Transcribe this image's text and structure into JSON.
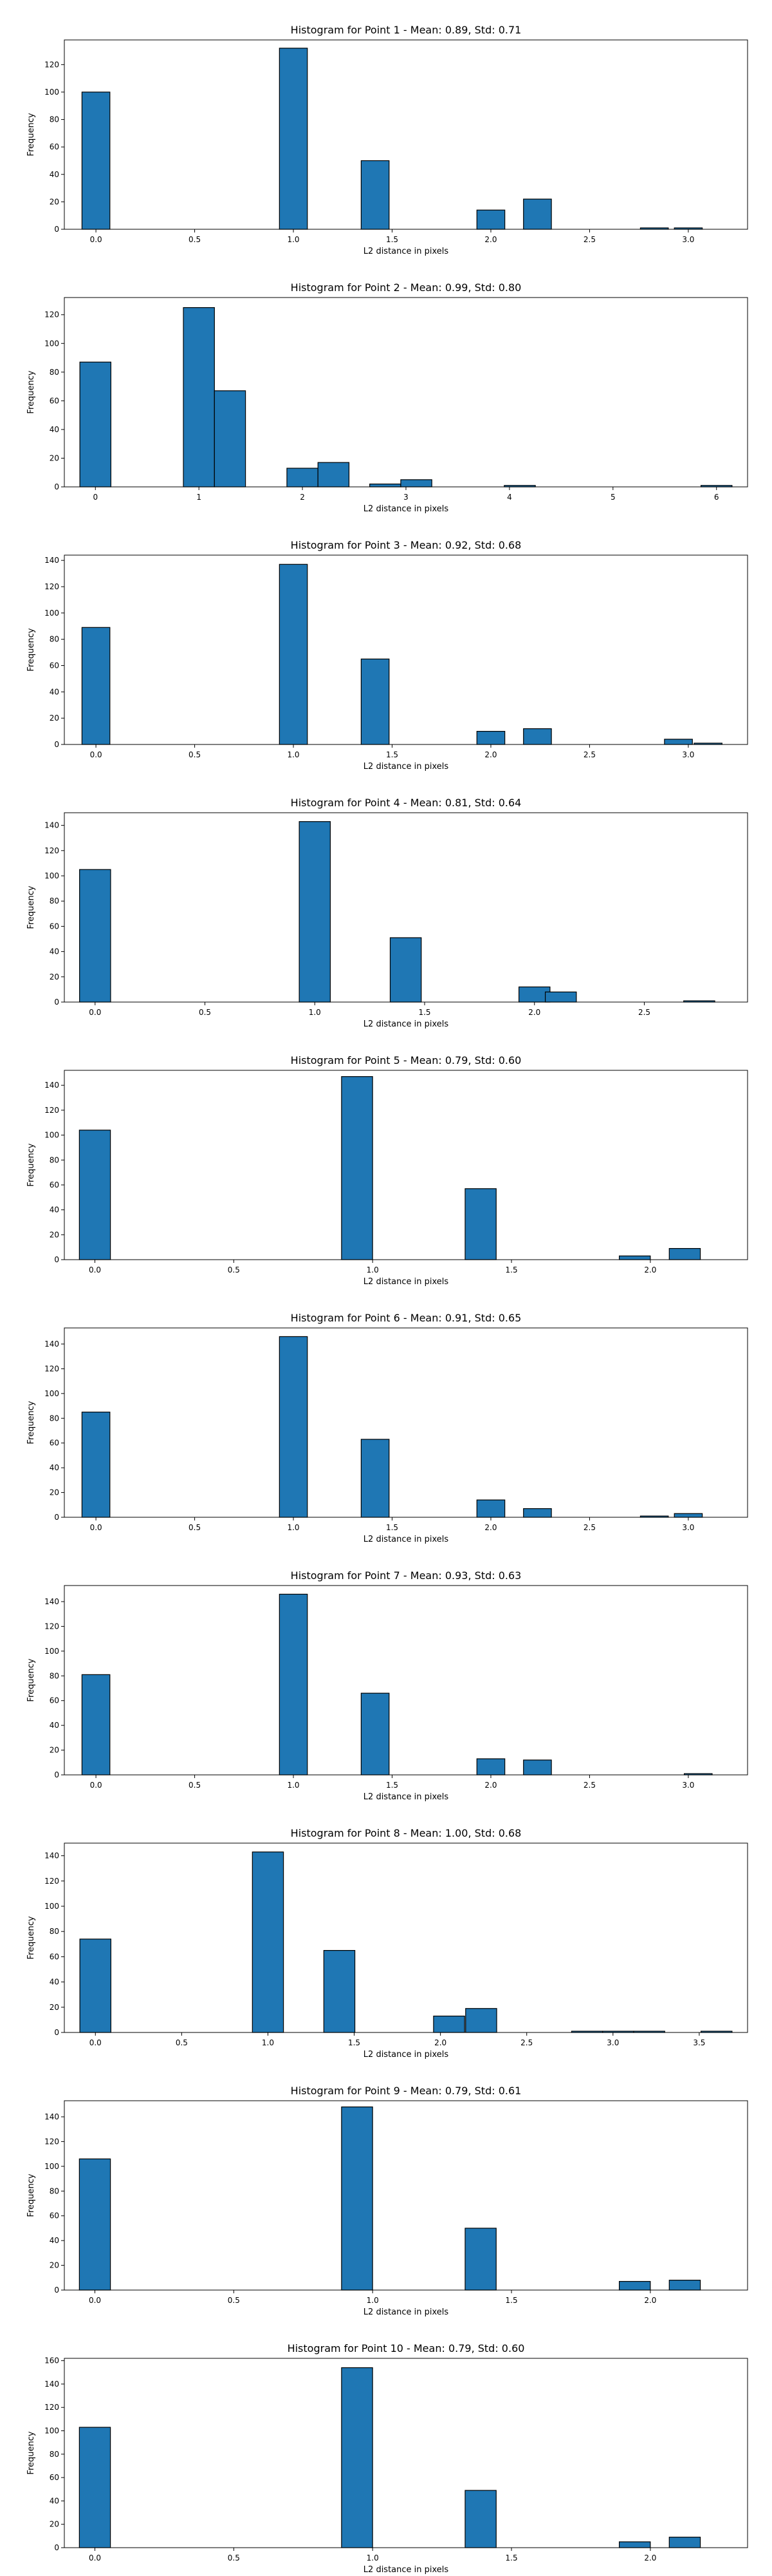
{
  "chart_data": [
    {
      "type": "bar",
      "title": "Histogram for Point 1 - Mean: 0.89, Std: 0.71",
      "xlabel": "L2 distance in pixels",
      "ylabel": "Frequency",
      "xlim": [
        -0.16,
        3.3
      ],
      "ylim": [
        0,
        138
      ],
      "xticks": [
        0.0,
        0.5,
        1.0,
        1.5,
        2.0,
        2.5,
        3.0
      ],
      "xtick_labels": [
        "0.0",
        "0.5",
        "1.0",
        "1.5",
        "2.0",
        "2.5",
        "3.0"
      ],
      "yticks": [
        0,
        20,
        40,
        60,
        80,
        100,
        120
      ],
      "ytick_labels": [
        "0",
        "20",
        "40",
        "60",
        "80",
        "100",
        "120"
      ],
      "bin_width": 0.1414,
      "bins": [
        {
          "x": 0.0,
          "value": 100
        },
        {
          "x": 1.0,
          "value": 132
        },
        {
          "x": 1.414,
          "value": 50
        },
        {
          "x": 2.0,
          "value": 14
        },
        {
          "x": 2.236,
          "value": 22
        },
        {
          "x": 2.828,
          "value": 1
        },
        {
          "x": 3.0,
          "value": 1
        }
      ]
    },
    {
      "type": "bar",
      "title": "Histogram for Point 2 - Mean: 0.99, Std: 0.80",
      "xlabel": "L2 distance in pixels",
      "ylabel": "Frequency",
      "xlim": [
        -0.3,
        6.3
      ],
      "ylim": [
        0,
        132
      ],
      "xticks": [
        0,
        1,
        2,
        3,
        4,
        5,
        6
      ],
      "xtick_labels": [
        "0",
        "1",
        "2",
        "3",
        "4",
        "5",
        "6"
      ],
      "yticks": [
        0,
        20,
        40,
        60,
        80,
        100,
        120
      ],
      "ytick_labels": [
        "0",
        "20",
        "40",
        "60",
        "80",
        "100",
        "120"
      ],
      "bin_width": 0.3,
      "bins": [
        {
          "x": 0.0,
          "value": 87
        },
        {
          "x": 1.0,
          "value": 125
        },
        {
          "x": 1.3,
          "value": 67
        },
        {
          "x": 2.0,
          "value": 13
        },
        {
          "x": 2.3,
          "value": 17
        },
        {
          "x": 2.8,
          "value": 2
        },
        {
          "x": 3.1,
          "value": 5
        },
        {
          "x": 4.1,
          "value": 1
        },
        {
          "x": 6.0,
          "value": 1
        }
      ]
    },
    {
      "type": "bar",
      "title": "Histogram for Point 3 - Mean: 0.92, Std: 0.68",
      "xlabel": "L2 distance in pixels",
      "ylabel": "Frequency",
      "xlim": [
        -0.16,
        3.3
      ],
      "ylim": [
        0,
        144
      ],
      "xticks": [
        0.0,
        0.5,
        1.0,
        1.5,
        2.0,
        2.5,
        3.0
      ],
      "xtick_labels": [
        "0.0",
        "0.5",
        "1.0",
        "1.5",
        "2.0",
        "2.5",
        "3.0"
      ],
      "yticks": [
        0,
        20,
        40,
        60,
        80,
        100,
        120,
        140
      ],
      "ytick_labels": [
        "0",
        "20",
        "40",
        "60",
        "80",
        "100",
        "120",
        "140"
      ],
      "bin_width": 0.1414,
      "bins": [
        {
          "x": 0.0,
          "value": 89
        },
        {
          "x": 1.0,
          "value": 137
        },
        {
          "x": 1.414,
          "value": 65
        },
        {
          "x": 2.0,
          "value": 10
        },
        {
          "x": 2.236,
          "value": 12
        },
        {
          "x": 2.95,
          "value": 4
        },
        {
          "x": 3.1,
          "value": 1
        }
      ]
    },
    {
      "type": "bar",
      "title": "Histogram for Point 4 - Mean: 0.81, Std: 0.64",
      "xlabel": "L2 distance in pixels",
      "ylabel": "Frequency",
      "xlim": [
        -0.14,
        2.97
      ],
      "ylim": [
        0,
        150
      ],
      "xticks": [
        0.0,
        0.5,
        1.0,
        1.5,
        2.0,
        2.5
      ],
      "xtick_labels": [
        "0.0",
        "0.5",
        "1.0",
        "1.5",
        "2.0",
        "2.5"
      ],
      "yticks": [
        0,
        20,
        40,
        60,
        80,
        100,
        120,
        140
      ],
      "ytick_labels": [
        "0",
        "20",
        "40",
        "60",
        "80",
        "100",
        "120",
        "140"
      ],
      "bin_width": 0.1414,
      "bins": [
        {
          "x": 0.0,
          "value": 105
        },
        {
          "x": 1.0,
          "value": 143
        },
        {
          "x": 1.414,
          "value": 51
        },
        {
          "x": 2.0,
          "value": 12
        },
        {
          "x": 2.12,
          "value": 8
        },
        {
          "x": 2.75,
          "value": 1
        }
      ]
    },
    {
      "type": "bar",
      "title": "Histogram for Point 5 - Mean: 0.79, Std: 0.60",
      "xlabel": "L2 distance in pixels",
      "ylabel": "Frequency",
      "xlim": [
        -0.11,
        2.35
      ],
      "ylim": [
        0,
        152
      ],
      "xticks": [
        0.0,
        0.5,
        1.0,
        1.5,
        2.0
      ],
      "xtick_labels": [
        "0.0",
        "0.5",
        "1.0",
        "1.5",
        "2.0"
      ],
      "yticks": [
        0,
        20,
        40,
        60,
        80,
        100,
        120,
        140
      ],
      "ytick_labels": [
        "0",
        "20",
        "40",
        "60",
        "80",
        "100",
        "120",
        "140"
      ],
      "bin_width": 0.1118,
      "bins": [
        {
          "x": 0.0,
          "value": 104
        },
        {
          "x": 0.944,
          "value": 147
        },
        {
          "x": 1.389,
          "value": 57
        },
        {
          "x": 1.944,
          "value": 3
        },
        {
          "x": 2.124,
          "value": 9
        }
      ]
    },
    {
      "type": "bar",
      "title": "Histogram for Point 6 - Mean: 0.91, Std: 0.65",
      "xlabel": "L2 distance in pixels",
      "ylabel": "Frequency",
      "xlim": [
        -0.16,
        3.3
      ],
      "ylim": [
        0,
        153
      ],
      "xticks": [
        0.0,
        0.5,
        1.0,
        1.5,
        2.0,
        2.5,
        3.0
      ],
      "xtick_labels": [
        "0.0",
        "0.5",
        "1.0",
        "1.5",
        "2.0",
        "2.5",
        "3.0"
      ],
      "yticks": [
        0,
        20,
        40,
        60,
        80,
        100,
        120,
        140
      ],
      "ytick_labels": [
        "0",
        "20",
        "40",
        "60",
        "80",
        "100",
        "120",
        "140"
      ],
      "bin_width": 0.1414,
      "bins": [
        {
          "x": 0.0,
          "value": 85
        },
        {
          "x": 1.0,
          "value": 146
        },
        {
          "x": 1.414,
          "value": 63
        },
        {
          "x": 2.0,
          "value": 14
        },
        {
          "x": 2.236,
          "value": 7
        },
        {
          "x": 2.828,
          "value": 1
        },
        {
          "x": 3.0,
          "value": 3
        }
      ]
    },
    {
      "type": "bar",
      "title": "Histogram for Point 7 - Mean: 0.93, Std: 0.63",
      "xlabel": "L2 distance in pixels",
      "ylabel": "Frequency",
      "xlim": [
        -0.16,
        3.3
      ],
      "ylim": [
        0,
        153
      ],
      "xticks": [
        0.0,
        0.5,
        1.0,
        1.5,
        2.0,
        2.5,
        3.0
      ],
      "xtick_labels": [
        "0.0",
        "0.5",
        "1.0",
        "1.5",
        "2.0",
        "2.5",
        "3.0"
      ],
      "yticks": [
        0,
        20,
        40,
        60,
        80,
        100,
        120,
        140
      ],
      "ytick_labels": [
        "0",
        "20",
        "40",
        "60",
        "80",
        "100",
        "120",
        "140"
      ],
      "bin_width": 0.1414,
      "bins": [
        {
          "x": 0.0,
          "value": 81
        },
        {
          "x": 1.0,
          "value": 146
        },
        {
          "x": 1.414,
          "value": 66
        },
        {
          "x": 2.0,
          "value": 13
        },
        {
          "x": 2.236,
          "value": 12
        },
        {
          "x": 3.05,
          "value": 1
        }
      ]
    },
    {
      "type": "bar",
      "title": "Histogram for Point 8 - Mean: 1.00, Std: 0.68",
      "xlabel": "L2 distance in pixels",
      "ylabel": "Frequency",
      "xlim": [
        -0.18,
        3.78
      ],
      "ylim": [
        0,
        150
      ],
      "xticks": [
        0.0,
        0.5,
        1.0,
        1.5,
        2.0,
        2.5,
        3.0,
        3.5
      ],
      "xtick_labels": [
        "0.0",
        "0.5",
        "1.0",
        "1.5",
        "2.0",
        "2.5",
        "3.0",
        "3.5"
      ],
      "yticks": [
        0,
        20,
        40,
        60,
        80,
        100,
        120,
        140
      ],
      "ytick_labels": [
        "0",
        "20",
        "40",
        "60",
        "80",
        "100",
        "120",
        "140"
      ],
      "bin_width": 0.18,
      "bins": [
        {
          "x": 0.0,
          "value": 74
        },
        {
          "x": 1.0,
          "value": 143
        },
        {
          "x": 1.414,
          "value": 65
        },
        {
          "x": 2.05,
          "value": 13
        },
        {
          "x": 2.236,
          "value": 19
        },
        {
          "x": 2.85,
          "value": 1
        },
        {
          "x": 3.03,
          "value": 1
        },
        {
          "x": 3.21,
          "value": 1
        },
        {
          "x": 3.6,
          "value": 1
        }
      ]
    },
    {
      "type": "bar",
      "title": "Histogram for Point 9 - Mean: 0.79, Std: 0.61",
      "xlabel": "L2 distance in pixels",
      "ylabel": "Frequency",
      "xlim": [
        -0.11,
        2.35
      ],
      "ylim": [
        0,
        153
      ],
      "xticks": [
        0.0,
        0.5,
        1.0,
        1.5,
        2.0
      ],
      "xtick_labels": [
        "0.0",
        "0.5",
        "1.0",
        "1.5",
        "2.0"
      ],
      "yticks": [
        0,
        20,
        40,
        60,
        80,
        100,
        120,
        140
      ],
      "ytick_labels": [
        "0",
        "20",
        "40",
        "60",
        "80",
        "100",
        "120",
        "140"
      ],
      "bin_width": 0.1118,
      "bins": [
        {
          "x": 0.0,
          "value": 106
        },
        {
          "x": 0.944,
          "value": 148
        },
        {
          "x": 1.389,
          "value": 50
        },
        {
          "x": 1.944,
          "value": 7
        },
        {
          "x": 2.124,
          "value": 8
        }
      ]
    },
    {
      "type": "bar",
      "title": "Histogram for Point 10 - Mean: 0.79, Std: 0.60",
      "xlabel": "L2 distance in pixels",
      "ylabel": "Frequency",
      "xlim": [
        -0.11,
        2.35
      ],
      "ylim": [
        0,
        162
      ],
      "xticks": [
        0.0,
        0.5,
        1.0,
        1.5,
        2.0
      ],
      "xtick_labels": [
        "0.0",
        "0.5",
        "1.0",
        "1.5",
        "2.0"
      ],
      "yticks": [
        0,
        20,
        40,
        60,
        80,
        100,
        120,
        140,
        160
      ],
      "ytick_labels": [
        "0",
        "20",
        "40",
        "60",
        "80",
        "100",
        "120",
        "140",
        "160"
      ],
      "bin_width": 0.1118,
      "bins": [
        {
          "x": 0.0,
          "value": 103
        },
        {
          "x": 0.944,
          "value": 154
        },
        {
          "x": 1.389,
          "value": 49
        },
        {
          "x": 1.944,
          "value": 5
        },
        {
          "x": 2.124,
          "value": 9
        }
      ]
    }
  ],
  "style": {
    "bar_fill": "#1f77b4",
    "bar_edge": "#000000",
    "axis_color": "#000000",
    "background": "#ffffff"
  }
}
